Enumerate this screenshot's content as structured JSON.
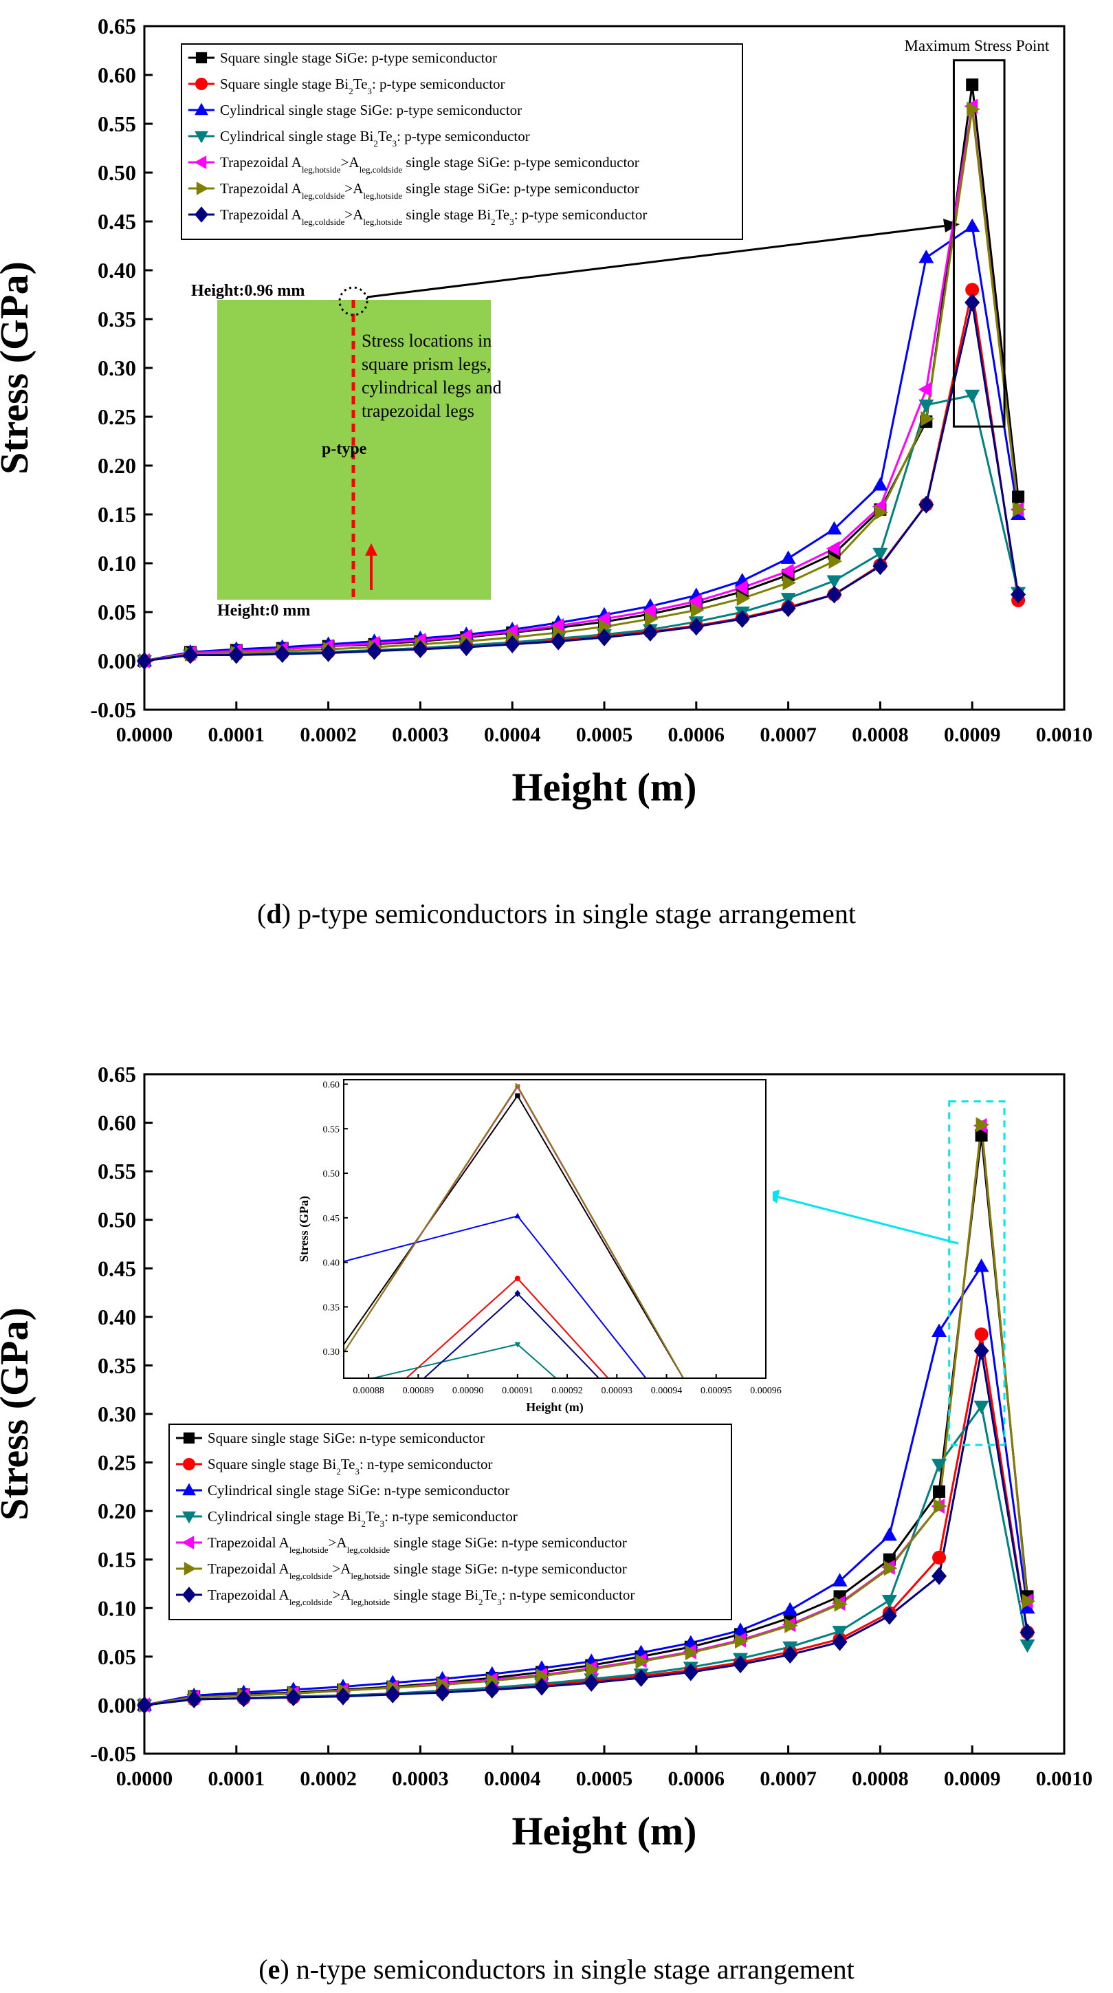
{
  "chart_data": [
    {
      "id": "d",
      "type": "line",
      "ylabel": "Stress (GPa)",
      "xlabel": "Height (m)",
      "xlim": [
        0,
        0.001
      ],
      "ylim": [
        -0.05,
        0.65
      ],
      "xticks": [
        "0.0000",
        "0.0001",
        "0.0002",
        "0.0003",
        "0.0004",
        "0.0005",
        "0.0006",
        "0.0007",
        "0.0008",
        "0.0009",
        "0.0010"
      ],
      "yticks": [
        "-0.05",
        "0.00",
        "0.05",
        "0.10",
        "0.15",
        "0.20",
        "0.25",
        "0.30",
        "0.35",
        "0.40",
        "0.45",
        "0.50",
        "0.55",
        "0.60",
        "0.65"
      ],
      "x": [
        0,
        5e-05,
        0.0001,
        0.00015,
        0.0002,
        0.00025,
        0.0003,
        0.00035,
        0.0004,
        0.00045,
        0.0005,
        0.00055,
        0.0006,
        0.00065,
        0.0007,
        0.00075,
        0.0008,
        0.00085,
        0.0009,
        0.00095
      ],
      "series": [
        {
          "name": "Square single stage SiGe: p-type semiconductor",
          "color": "#000000",
          "marker": "square",
          "values": [
            0.0,
            0.009,
            0.011,
            0.013,
            0.015,
            0.017,
            0.02,
            0.024,
            0.029,
            0.034,
            0.04,
            0.048,
            0.058,
            0.071,
            0.088,
            0.11,
            0.155,
            0.245,
            0.59,
            0.168
          ]
        },
        {
          "name": "Square single stage Bi2Te3: p-type semiconductor",
          "color": "#ff0000",
          "marker": "circle",
          "values": [
            0.0,
            0.006,
            0.007,
            0.008,
            0.009,
            0.011,
            0.013,
            0.016,
            0.019,
            0.022,
            0.026,
            0.03,
            0.036,
            0.044,
            0.055,
            0.068,
            0.098,
            0.16,
            0.38,
            0.062
          ]
        },
        {
          "name": "Cylindrical single stage SiGe: p-type semiconductor",
          "color": "#0000ff",
          "marker": "triangle-up",
          "values": [
            0.0,
            0.009,
            0.012,
            0.014,
            0.017,
            0.02,
            0.023,
            0.027,
            0.032,
            0.039,
            0.047,
            0.056,
            0.067,
            0.082,
            0.105,
            0.135,
            0.18,
            0.413,
            0.445,
            0.15
          ]
        },
        {
          "name": "Cylindrical single stage Bi2Te3: p-type semiconductor",
          "color": "#008080",
          "marker": "triangle-down",
          "values": [
            0.0,
            0.006,
            0.007,
            0.008,
            0.009,
            0.011,
            0.013,
            0.016,
            0.019,
            0.023,
            0.027,
            0.032,
            0.04,
            0.05,
            0.064,
            0.082,
            0.11,
            0.262,
            0.272,
            0.07
          ]
        },
        {
          "name": "Trapezoidal A_leg,hotside>A_leg,coldside single stage SiGe: p-type semiconductor",
          "color": "#ff00ff",
          "marker": "triangle-left",
          "values": [
            0.0,
            0.008,
            0.01,
            0.012,
            0.015,
            0.018,
            0.021,
            0.025,
            0.03,
            0.036,
            0.043,
            0.051,
            0.061,
            0.075,
            0.092,
            0.115,
            0.158,
            0.278,
            0.568,
            0.155
          ]
        },
        {
          "name": "Trapezoidal A_leg,coldside>A_leg,hotside single stage SiGe: p-type semiconductor",
          "color": "#808000",
          "marker": "triangle-right",
          "values": [
            0.0,
            0.007,
            0.008,
            0.01,
            0.012,
            0.014,
            0.017,
            0.02,
            0.024,
            0.029,
            0.035,
            0.043,
            0.052,
            0.064,
            0.08,
            0.102,
            0.152,
            0.248,
            0.565,
            0.155
          ]
        },
        {
          "name": "Trapezoidal A_leg,coldside>A_leg,hotside single stage Bi2Te3: p-type semiconductor",
          "color": "#000080",
          "marker": "diamond",
          "values": [
            0.0,
            0.006,
            0.006,
            0.007,
            0.008,
            0.01,
            0.012,
            0.014,
            0.017,
            0.02,
            0.024,
            0.029,
            0.035,
            0.043,
            0.054,
            0.068,
            0.097,
            0.16,
            0.367,
            0.068
          ]
        }
      ],
      "annotations": {
        "max_label": "Maximum Stress Point",
        "height_top": "Height:0.96 mm",
        "height_bottom": "Height:0 mm",
        "ptype": "p-type",
        "stress_text": [
          "Stress locations in",
          "square prism legs,",
          "cylindrical legs and",
          "trapezoidal legs"
        ]
      }
    },
    {
      "id": "e",
      "type": "line",
      "ylabel": "Stress (GPa)",
      "xlabel": "Height (m)",
      "xlim": [
        0,
        0.001
      ],
      "ylim": [
        -0.05,
        0.65
      ],
      "xticks": [
        "0.0000",
        "0.0001",
        "0.0002",
        "0.0003",
        "0.0004",
        "0.0005",
        "0.0006",
        "0.0007",
        "0.0008",
        "0.0009",
        "0.0010"
      ],
      "yticks": [
        "-0.05",
        "0.00",
        "0.05",
        "0.10",
        "0.15",
        "0.20",
        "0.25",
        "0.30",
        "0.35",
        "0.40",
        "0.45",
        "0.50",
        "0.55",
        "0.60",
        "0.65"
      ],
      "x": [
        0,
        5.4e-05,
        0.000108,
        0.000162,
        0.000216,
        0.00027,
        0.000324,
        0.000378,
        0.000432,
        0.000486,
        0.00054,
        0.000594,
        0.000648,
        0.000702,
        0.000756,
        0.00081,
        0.000864,
        0.00091,
        0.00096
      ],
      "series": [
        {
          "name": "Square single stage SiGe: n-type semiconductor",
          "color": "#000000",
          "marker": "square",
          "values": [
            0.0,
            0.009,
            0.011,
            0.013,
            0.016,
            0.019,
            0.023,
            0.028,
            0.034,
            0.041,
            0.05,
            0.06,
            0.073,
            0.09,
            0.112,
            0.15,
            0.22,
            0.587,
            0.112
          ]
        },
        {
          "name": "Square single stage Bi2Te3: n-type semiconductor",
          "color": "#ff0000",
          "marker": "circle",
          "values": [
            0.0,
            0.006,
            0.007,
            0.008,
            0.01,
            0.012,
            0.014,
            0.017,
            0.021,
            0.025,
            0.03,
            0.036,
            0.044,
            0.055,
            0.068,
            0.095,
            0.152,
            0.382,
            0.075
          ]
        },
        {
          "name": "Cylindrical single stage SiGe: n-type semiconductor",
          "color": "#0000ff",
          "marker": "triangle-up",
          "values": [
            0.0,
            0.01,
            0.013,
            0.016,
            0.019,
            0.023,
            0.027,
            0.032,
            0.038,
            0.045,
            0.054,
            0.064,
            0.077,
            0.098,
            0.128,
            0.175,
            0.385,
            0.452,
            0.1
          ]
        },
        {
          "name": "Cylindrical single stage Bi2Te3: n-type semiconductor",
          "color": "#008080",
          "marker": "triangle-down",
          "values": [
            0.0,
            0.006,
            0.007,
            0.009,
            0.01,
            0.012,
            0.015,
            0.018,
            0.022,
            0.027,
            0.032,
            0.039,
            0.048,
            0.06,
            0.076,
            0.108,
            0.248,
            0.308,
            0.062
          ]
        },
        {
          "name": "Trapezoidal A_leg,hotside>A_leg,coldside single stage SiGe: n-type semiconductor",
          "color": "#ff00ff",
          "marker": "triangle-left",
          "values": [
            0.0,
            0.008,
            0.01,
            0.012,
            0.015,
            0.018,
            0.022,
            0.026,
            0.031,
            0.038,
            0.046,
            0.055,
            0.067,
            0.083,
            0.105,
            0.142,
            0.205,
            0.597,
            0.107
          ]
        },
        {
          "name": "Trapezoidal A_leg,coldside>A_leg,hotside single stage SiGe: n-type semiconductor",
          "color": "#808000",
          "marker": "triangle-right",
          "values": [
            0.0,
            0.008,
            0.01,
            0.012,
            0.015,
            0.018,
            0.021,
            0.025,
            0.03,
            0.037,
            0.045,
            0.054,
            0.066,
            0.082,
            0.104,
            0.141,
            0.205,
            0.598,
            0.107
          ]
        },
        {
          "name": "Trapezoidal A_leg,coldside>A_leg,hotside single stage Bi2Te3: n-type semiconductor",
          "color": "#000080",
          "marker": "diamond",
          "values": [
            0.0,
            0.006,
            0.007,
            0.008,
            0.009,
            0.011,
            0.013,
            0.016,
            0.019,
            0.023,
            0.028,
            0.034,
            0.042,
            0.052,
            0.065,
            0.092,
            0.133,
            0.365,
            0.075
          ]
        }
      ],
      "inset": {
        "xlabel": "Height (m)",
        "ylabel": "Stress (GPa)",
        "xlim": [
          0.000875,
          0.00096
        ],
        "ylim": [
          0.27,
          0.605
        ],
        "xticks": [
          "0.00088",
          "0.00089",
          "0.00090",
          "0.00091",
          "0.00092",
          "0.00093",
          "0.00094",
          "0.00095",
          "0.00096"
        ],
        "yticks": [
          "0.30",
          "0.35",
          "0.40",
          "0.45",
          "0.50",
          "0.55",
          "0.60"
        ]
      }
    }
  ],
  "captions": [
    {
      "letter": "d",
      "text": " p-type semiconductors in single stage arrangement"
    },
    {
      "letter": "e",
      "text": " n-type semiconductors in single stage arrangement"
    }
  ]
}
